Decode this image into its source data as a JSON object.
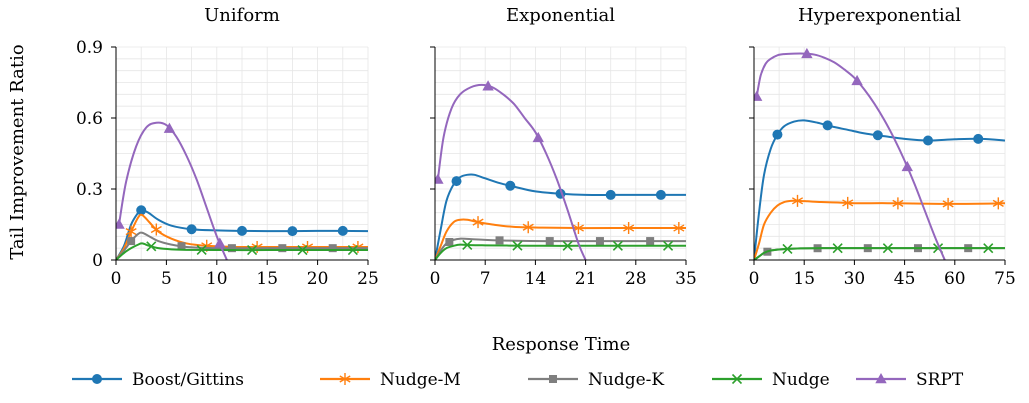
{
  "figure": {
    "ylabel": "Tail Improvement Ratio",
    "xlabel": "Response Time"
  },
  "colors": {
    "Boost/Gittins": "#1f77b4",
    "Nudge-M": "#ff7f0e",
    "Nudge-K": "#7f7f7f",
    "Nudge": "#2ca02c",
    "SRPT": "#9467bd"
  },
  "markers": {
    "Boost/Gittins": "circle",
    "Nudge-M": "asterisk",
    "Nudge-K": "square",
    "Nudge": "x",
    "SRPT": "triangle"
  },
  "legend": [
    "Boost/Gittins",
    "Nudge-M",
    "Nudge-K",
    "Nudge",
    "SRPT"
  ],
  "chart_data": [
    {
      "type": "line",
      "title": "Uniform",
      "xlabel": "Response Time",
      "ylabel": "Tail Improvement Ratio",
      "xlim": [
        0,
        25
      ],
      "ylim": [
        0,
        0.9
      ],
      "xticks": [
        0,
        5,
        10,
        15,
        20,
        25
      ],
      "yticks": [
        0,
        0.3,
        0.6,
        0.9
      ],
      "ytick_labels": [
        "0",
        "0.3",
        "0.6",
        "0.9"
      ],
      "grid": true,
      "series": [
        {
          "name": "Boost/Gittins",
          "x": [
            0,
            0.8,
            1.5,
            2.2,
            2.5,
            3.2,
            4.2,
            5.5,
            7.5,
            10,
            12.5,
            15,
            17.5,
            20,
            22.5,
            25
          ],
          "y": [
            0,
            0.06,
            0.15,
            0.2,
            0.21,
            0.2,
            0.17,
            0.145,
            0.13,
            0.125,
            0.123,
            0.122,
            0.122,
            0.123,
            0.123,
            0.122
          ],
          "markers_at": [
            2.5,
            7.5,
            12.5,
            17.5,
            22.5
          ]
        },
        {
          "name": "Nudge-M",
          "x": [
            0,
            0.8,
            1.5,
            2.2,
            2.6,
            3.3,
            4.2,
            5.5,
            7,
            9,
            12,
            15,
            19,
            22,
            25
          ],
          "y": [
            0,
            0.05,
            0.12,
            0.18,
            0.19,
            0.16,
            0.12,
            0.09,
            0.07,
            0.06,
            0.055,
            0.055,
            0.055,
            0.055,
            0.055
          ],
          "markers_at": [
            1.5,
            4.0,
            9.0,
            14.0,
            19.0,
            24.0
          ]
        },
        {
          "name": "Nudge-K",
          "x": [
            0,
            0.8,
            1.5,
            2.2,
            2.6,
            3.3,
            4.2,
            5.5,
            7,
            10,
            15,
            20,
            25
          ],
          "y": [
            0,
            0.04,
            0.08,
            0.11,
            0.115,
            0.1,
            0.08,
            0.065,
            0.055,
            0.05,
            0.05,
            0.05,
            0.05
          ],
          "markers_at": [
            1.5,
            6.5,
            11.5,
            16.5,
            21.5
          ]
        },
        {
          "name": "Nudge",
          "x": [
            0,
            0.8,
            1.5,
            2.2,
            2.6,
            3.3,
            4.2,
            5.5,
            7,
            10,
            15,
            20,
            25
          ],
          "y": [
            0,
            0.03,
            0.05,
            0.065,
            0.07,
            0.06,
            0.05,
            0.045,
            0.043,
            0.042,
            0.042,
            0.042,
            0.042
          ],
          "markers_at": [
            3.5,
            8.5,
            13.5,
            18.5,
            23.5
          ]
        },
        {
          "name": "SRPT",
          "x": [
            0.3,
            1,
            2,
            3,
            4,
            5,
            6,
            7,
            8,
            9,
            10,
            11
          ],
          "y": [
            0.15,
            0.33,
            0.48,
            0.56,
            0.58,
            0.57,
            0.52,
            0.44,
            0.34,
            0.22,
            0.1,
            0
          ],
          "markers_at": [
            0.3,
            5.3,
            10.3
          ]
        }
      ]
    },
    {
      "type": "line",
      "title": "Exponential",
      "xlabel": "Response Time",
      "ylabel": "Tail Improvement Ratio",
      "xlim": [
        0,
        35
      ],
      "ylim": [
        0,
        0.9
      ],
      "xticks": [
        0,
        7,
        14,
        21,
        28,
        35
      ],
      "yticks": [
        0,
        0.3,
        0.6,
        0.9
      ],
      "grid": true,
      "series": [
        {
          "name": "Boost/Gittins",
          "x": [
            0,
            0.8,
            1.6,
            2.6,
            3.5,
            4.5,
            5.5,
            7,
            9,
            11,
            14,
            17.5,
            21,
            25,
            30,
            35
          ],
          "y": [
            0,
            0.13,
            0.25,
            0.32,
            0.35,
            0.36,
            0.36,
            0.345,
            0.325,
            0.31,
            0.29,
            0.28,
            0.275,
            0.275,
            0.275,
            0.275
          ],
          "markers_at": [
            3.0,
            10.5,
            17.5,
            24.5,
            31.5
          ]
        },
        {
          "name": "Nudge-M",
          "x": [
            0,
            0.8,
            1.6,
            2.6,
            3.5,
            4.5,
            6,
            8,
            11,
            15,
            20,
            25,
            30,
            35
          ],
          "y": [
            0,
            0.06,
            0.12,
            0.16,
            0.17,
            0.17,
            0.16,
            0.15,
            0.14,
            0.137,
            0.135,
            0.135,
            0.135,
            0.135
          ],
          "markers_at": [
            6.0,
            13.0,
            20.0,
            27.0,
            34.0
          ]
        },
        {
          "name": "Nudge-K",
          "x": [
            0,
            0.8,
            1.6,
            2.6,
            3.5,
            5,
            7,
            10,
            15,
            20,
            25,
            30,
            35
          ],
          "y": [
            0,
            0.04,
            0.07,
            0.085,
            0.09,
            0.088,
            0.085,
            0.082,
            0.08,
            0.08,
            0.08,
            0.08,
            0.08
          ],
          "markers_at": [
            2.0,
            9.0,
            16.0,
            23.0,
            30.0
          ]
        },
        {
          "name": "Nudge",
          "x": [
            0,
            0.8,
            1.6,
            2.6,
            3.5,
            5,
            7,
            10,
            15,
            20,
            25,
            30,
            35
          ],
          "y": [
            0,
            0.03,
            0.05,
            0.06,
            0.065,
            0.063,
            0.062,
            0.061,
            0.06,
            0.06,
            0.06,
            0.06,
            0.06
          ],
          "markers_at": [
            4.5,
            11.5,
            18.5,
            25.5,
            32.5
          ]
        },
        {
          "name": "SRPT",
          "x": [
            0.4,
            1.2,
            2.3,
            3.5,
            5,
            6.5,
            8,
            9.5,
            11,
            12.5,
            14,
            15.5,
            17,
            18.5,
            20,
            21
          ],
          "y": [
            0.34,
            0.52,
            0.64,
            0.7,
            0.73,
            0.74,
            0.73,
            0.7,
            0.66,
            0.6,
            0.54,
            0.45,
            0.34,
            0.21,
            0.07,
            0
          ],
          "markers_at": [
            0.4,
            7.4,
            14.4
          ]
        }
      ]
    },
    {
      "type": "line",
      "title": "Hyperexponential",
      "xlabel": "Response Time",
      "ylabel": "Tail Improvement Ratio",
      "xlim": [
        0,
        75
      ],
      "ylim": [
        0,
        0.9
      ],
      "xticks": [
        0,
        15,
        30,
        45,
        60,
        75
      ],
      "yticks": [
        0,
        0.3,
        0.6,
        0.9
      ],
      "grid": true,
      "series": [
        {
          "name": "Boost/Gittins",
          "x": [
            0,
            1.5,
            3,
            5,
            7,
            9,
            12,
            15,
            19,
            23,
            28,
            33,
            38,
            45,
            52,
            60,
            68,
            75
          ],
          "y": [
            0,
            0.2,
            0.36,
            0.47,
            0.53,
            0.565,
            0.585,
            0.59,
            0.58,
            0.565,
            0.55,
            0.535,
            0.525,
            0.512,
            0.505,
            0.51,
            0.512,
            0.505
          ],
          "markers_at": [
            7.0,
            22.0,
            37.0,
            52.0,
            67.0
          ]
        },
        {
          "name": "Nudge-M",
          "x": [
            0,
            1.5,
            3,
            5,
            7,
            9,
            11,
            13,
            16,
            20,
            25,
            30,
            40,
            50,
            60,
            70,
            75
          ],
          "y": [
            0,
            0.07,
            0.15,
            0.2,
            0.23,
            0.245,
            0.25,
            0.25,
            0.248,
            0.245,
            0.243,
            0.24,
            0.24,
            0.238,
            0.237,
            0.238,
            0.24
          ],
          "markers_at": [
            13.0,
            28.0,
            43.0,
            58.0,
            73.0
          ]
        },
        {
          "name": "Nudge-K",
          "x": [
            0,
            1.5,
            3,
            5,
            8,
            12,
            20,
            30,
            45,
            60,
            75
          ],
          "y": [
            0,
            0.015,
            0.03,
            0.04,
            0.045,
            0.048,
            0.05,
            0.05,
            0.05,
            0.05,
            0.05
          ],
          "markers_at": [
            4.0,
            19.0,
            34.0,
            49.0,
            64.0
          ]
        },
        {
          "name": "Nudge",
          "x": [
            0,
            1.5,
            3,
            5,
            8,
            12,
            20,
            30,
            45,
            60,
            75
          ],
          "y": [
            0,
            0.015,
            0.03,
            0.04,
            0.045,
            0.048,
            0.05,
            0.05,
            0.05,
            0.05,
            0.05
          ],
          "markers_at": [
            10.0,
            25.0,
            40.0,
            55.0,
            70.0
          ]
        },
        {
          "name": "SRPT",
          "x": [
            0.8,
            2,
            3.5,
            5,
            7,
            9,
            12,
            15,
            18,
            21,
            24,
            27,
            30,
            33,
            36,
            39,
            42,
            45,
            48,
            51,
            54,
            57
          ],
          "y": [
            0.69,
            0.78,
            0.83,
            0.85,
            0.865,
            0.87,
            0.872,
            0.872,
            0.868,
            0.855,
            0.835,
            0.805,
            0.77,
            0.72,
            0.66,
            0.59,
            0.51,
            0.42,
            0.32,
            0.21,
            0.1,
            0
          ],
          "markers_at": [
            0.8,
            15.8,
            30.8,
            45.8
          ]
        }
      ]
    }
  ]
}
